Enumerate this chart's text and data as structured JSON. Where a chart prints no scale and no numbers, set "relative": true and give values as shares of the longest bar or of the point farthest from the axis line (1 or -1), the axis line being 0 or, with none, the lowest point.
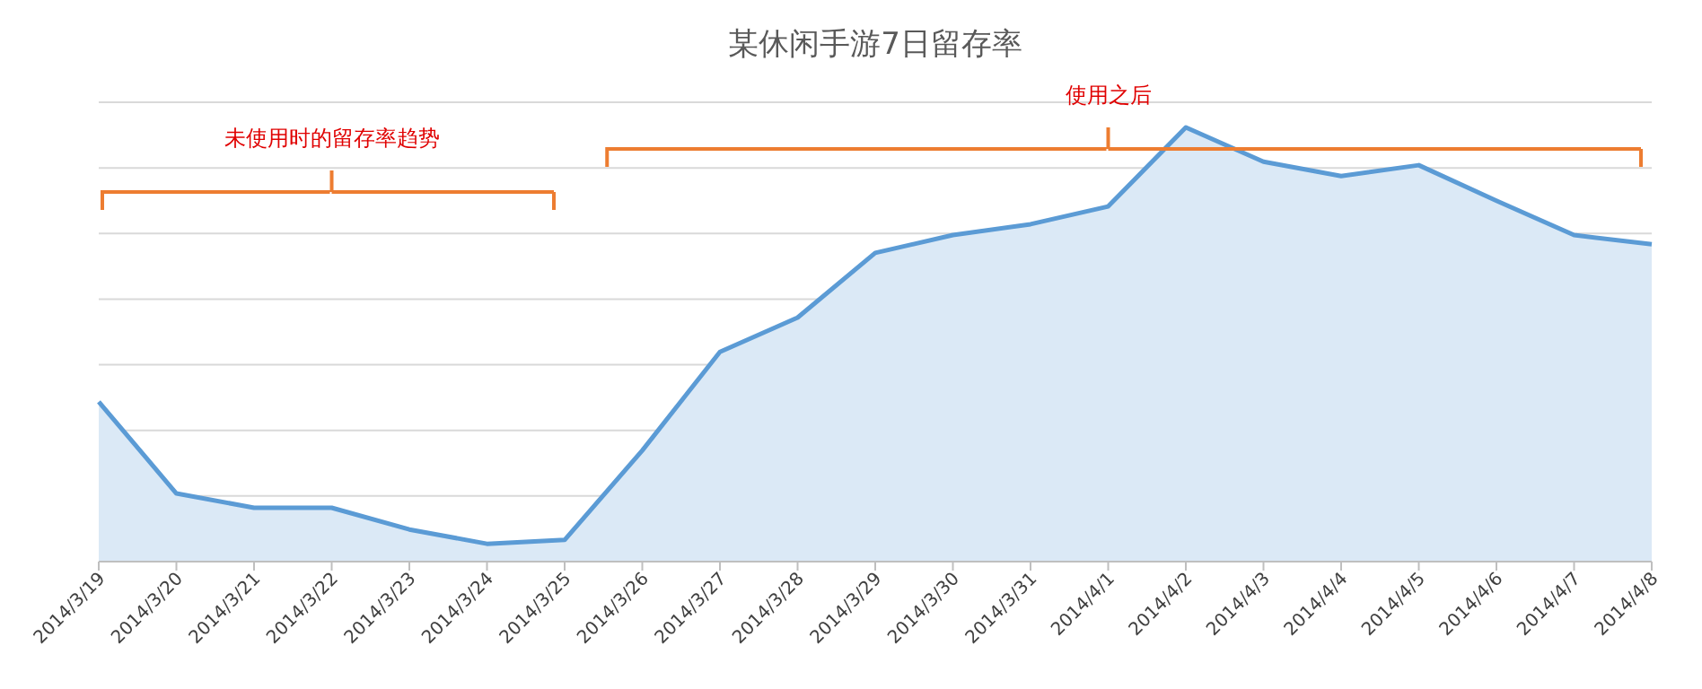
{
  "chart_data": {
    "type": "area",
    "title": "某休闲手游7日留存率",
    "relative": true,
    "grid": "y",
    "categories": [
      "2014/3/19",
      "2014/3/20",
      "2014/3/21",
      "2014/3/22",
      "2014/3/23",
      "2014/3/24",
      "2014/3/25",
      "2014/3/26",
      "2014/3/27",
      "2014/3/28",
      "2014/3/29",
      "2014/3/30",
      "2014/3/31",
      "2014/4/1",
      "2014/4/2",
      "2014/4/3",
      "2014/4/4",
      "2014/4/5",
      "2014/4/6",
      "2014/4/7",
      "2014/4/8"
    ],
    "series": [
      {
        "color": "#5b9bd5",
        "values": [
          0.368,
          0.157,
          0.124,
          0.124,
          0.074,
          0.041,
          0.05,
          0.256,
          0.483,
          0.562,
          0.711,
          0.752,
          0.777,
          0.818,
          1,
          0.921,
          0.888,
          0.913,
          0.831,
          0.752,
          0.731
        ]
      }
    ],
    "annotations": [
      "未使用时的留存率趋势",
      "使用之后"
    ]
  }
}
